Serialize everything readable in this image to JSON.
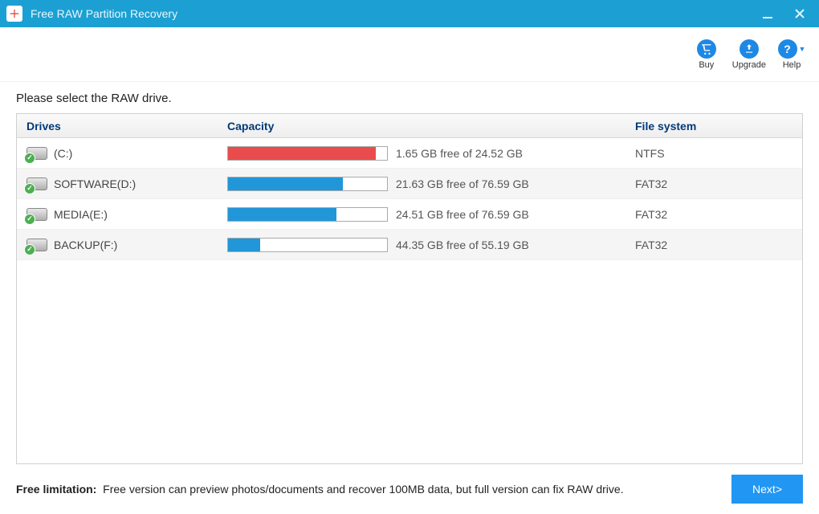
{
  "colors": {
    "titlebar": "#1ca0d3",
    "toolbar_icon": "#1e88e5",
    "header_text": "#003a7a",
    "next_btn": "#2196f3",
    "row_alt": "#f5f5f5"
  },
  "window": {
    "title": "Free RAW Partition Recovery"
  },
  "toolbar": {
    "buy": "Buy",
    "upgrade": "Upgrade",
    "help": "Help"
  },
  "instruction": "Please select the RAW drive.",
  "table": {
    "headers": {
      "drives": "Drives",
      "capacity": "Capacity",
      "filesystem": "File system"
    },
    "rows": [
      {
        "label": "(C:)",
        "fill_pct": 93,
        "bar_color": "#e84c4c",
        "cap_text": "1.65 GB free of 24.52 GB",
        "fs": "NTFS",
        "alt": false
      },
      {
        "label": "SOFTWARE(D:)",
        "fill_pct": 72,
        "bar_color": "#2196d9",
        "cap_text": "21.63 GB free of 76.59 GB",
        "fs": "FAT32",
        "alt": true
      },
      {
        "label": "MEDIA(E:)",
        "fill_pct": 68,
        "bar_color": "#2196d9",
        "cap_text": "24.51 GB free of 76.59 GB",
        "fs": "FAT32",
        "alt": false
      },
      {
        "label": "BACKUP(F:)",
        "fill_pct": 20,
        "bar_color": "#2196d9",
        "cap_text": "44.35 GB free of 55.19 GB",
        "fs": "FAT32",
        "alt": true
      }
    ]
  },
  "footer": {
    "limitation_label": "Free limitation:",
    "limitation_text": "Free version can preview photos/documents and recover 100MB data, but full version can fix RAW drive.",
    "next": "Next>"
  }
}
